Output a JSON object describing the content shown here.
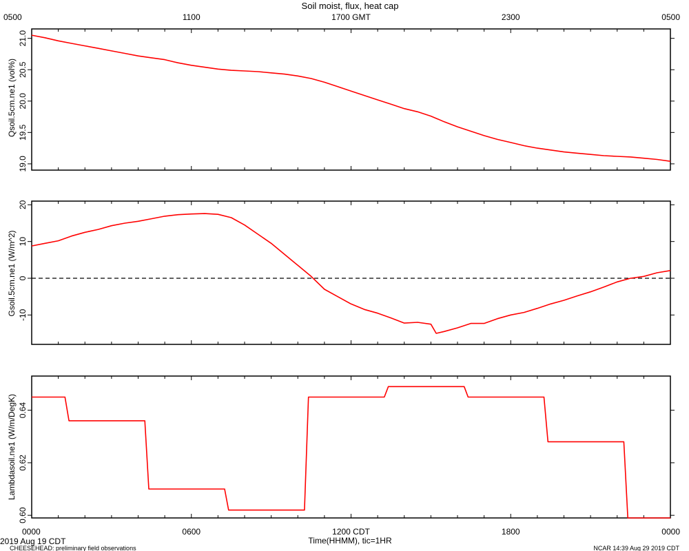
{
  "title": "Soil moist, flux, heat cap",
  "top_axis": {
    "tick_labels": [
      "0500",
      "1100",
      "1700 GMT",
      "2300",
      "0500"
    ]
  },
  "bottom_axis": {
    "tick_labels": [
      "0000",
      "0600",
      "1200 CDT",
      "1800",
      "0000"
    ],
    "xlabel": "Time(HHMM), tic=1HR"
  },
  "footer": {
    "date": "2019 Aug 19 CDT",
    "project": "CHEESEHEAD: preliminary field observations",
    "credit": "NCAR 14:39 Aug 29 2019 CDT"
  },
  "colors": {
    "series": "#ff0000",
    "axes": "#000000"
  },
  "chart_data": [
    {
      "type": "line",
      "ylabel": "Qsoil.5cm.ne1 (vol%)",
      "ylim": [
        18.9,
        21.15
      ],
      "yticks": [
        19.0,
        19.5,
        20.0,
        20.5,
        21.0
      ],
      "ytick_labels": [
        "19.0",
        "19.5",
        "20.0",
        "20.5",
        "21.0"
      ],
      "x_hours": [
        0,
        0.5,
        1,
        1.5,
        2,
        2.5,
        3,
        3.5,
        4,
        4.5,
        5,
        5.5,
        6,
        6.5,
        7,
        7.5,
        8,
        8.5,
        9,
        9.5,
        10,
        10.5,
        11,
        11.5,
        12,
        12.5,
        13,
        13.5,
        14,
        14.5,
        15,
        15.5,
        16,
        16.5,
        17,
        17.5,
        18,
        18.5,
        19,
        19.5,
        20,
        20.5,
        21,
        21.5,
        22,
        22.5,
        23,
        23.5,
        24
      ],
      "values": [
        21.05,
        21.01,
        20.96,
        20.92,
        20.88,
        20.84,
        20.8,
        20.76,
        20.72,
        20.69,
        20.66,
        20.61,
        20.57,
        20.54,
        20.51,
        20.49,
        20.48,
        20.47,
        20.45,
        20.43,
        20.4,
        20.36,
        20.3,
        20.23,
        20.16,
        20.09,
        20.02,
        19.95,
        19.88,
        19.83,
        19.76,
        19.67,
        19.59,
        19.52,
        19.45,
        19.39,
        19.34,
        19.29,
        19.25,
        19.22,
        19.19,
        19.17,
        19.15,
        19.13,
        19.12,
        19.11,
        19.09,
        19.07,
        19.04
      ]
    },
    {
      "type": "line",
      "ylabel": "Gsoil.5cm.ne1 (W/m^2)",
      "ylim": [
        -18,
        21
      ],
      "yticks": [
        -10,
        0,
        10,
        20
      ],
      "ytick_labels": [
        "-10",
        "0",
        "10",
        "20"
      ],
      "reference_line": 0,
      "x_hours": [
        0,
        0.5,
        1,
        1.5,
        2,
        2.5,
        3,
        3.5,
        4,
        4.5,
        5,
        5.5,
        6,
        6.5,
        7,
        7.5,
        8,
        8.5,
        9,
        9.5,
        10,
        10.5,
        11,
        11.5,
        12,
        12.5,
        13,
        13.5,
        14,
        14.5,
        15,
        15.2,
        15.5,
        16,
        16.5,
        17,
        17.5,
        18,
        18.5,
        19,
        19.5,
        20,
        20.5,
        21,
        21.5,
        22,
        22.5,
        23,
        23.5,
        24
      ],
      "values": [
        8.8,
        9.5,
        10.2,
        11.5,
        12.5,
        13.3,
        14.3,
        15.0,
        15.5,
        16.2,
        16.9,
        17.3,
        17.5,
        17.6,
        17.4,
        16.5,
        14.5,
        12.0,
        9.5,
        6.5,
        3.5,
        0.5,
        -3.0,
        -5.0,
        -7.0,
        -8.5,
        -9.5,
        -10.8,
        -12.2,
        -12.0,
        -12.5,
        -15.0,
        -14.5,
        -13.5,
        -12.3,
        -12.3,
        -11.0,
        -10.0,
        -9.3,
        -8.2,
        -7.0,
        -6.0,
        -4.8,
        -3.7,
        -2.4,
        -1.0,
        0.0,
        0.5,
        1.5,
        2.1
      ]
    },
    {
      "type": "line",
      "ylabel": "Lambdasoil.ne1 (W/m/DegK)",
      "ylim": [
        0.599,
        0.653
      ],
      "yticks": [
        0.6,
        0.62,
        0.64
      ],
      "ytick_labels": [
        "0.60",
        "0.62",
        "0.64"
      ],
      "x_hours": [
        0,
        1.25,
        1.4,
        4.25,
        4.4,
        7.25,
        7.4,
        10.25,
        10.4,
        13.25,
        13.4,
        16.25,
        16.4,
        19.25,
        19.4,
        22.25,
        22.4,
        24
      ],
      "values": [
        0.645,
        0.645,
        0.636,
        0.636,
        0.61,
        0.61,
        0.602,
        0.602,
        0.645,
        0.645,
        0.649,
        0.649,
        0.645,
        0.645,
        0.628,
        0.628,
        0.599,
        0.599
      ]
    }
  ]
}
